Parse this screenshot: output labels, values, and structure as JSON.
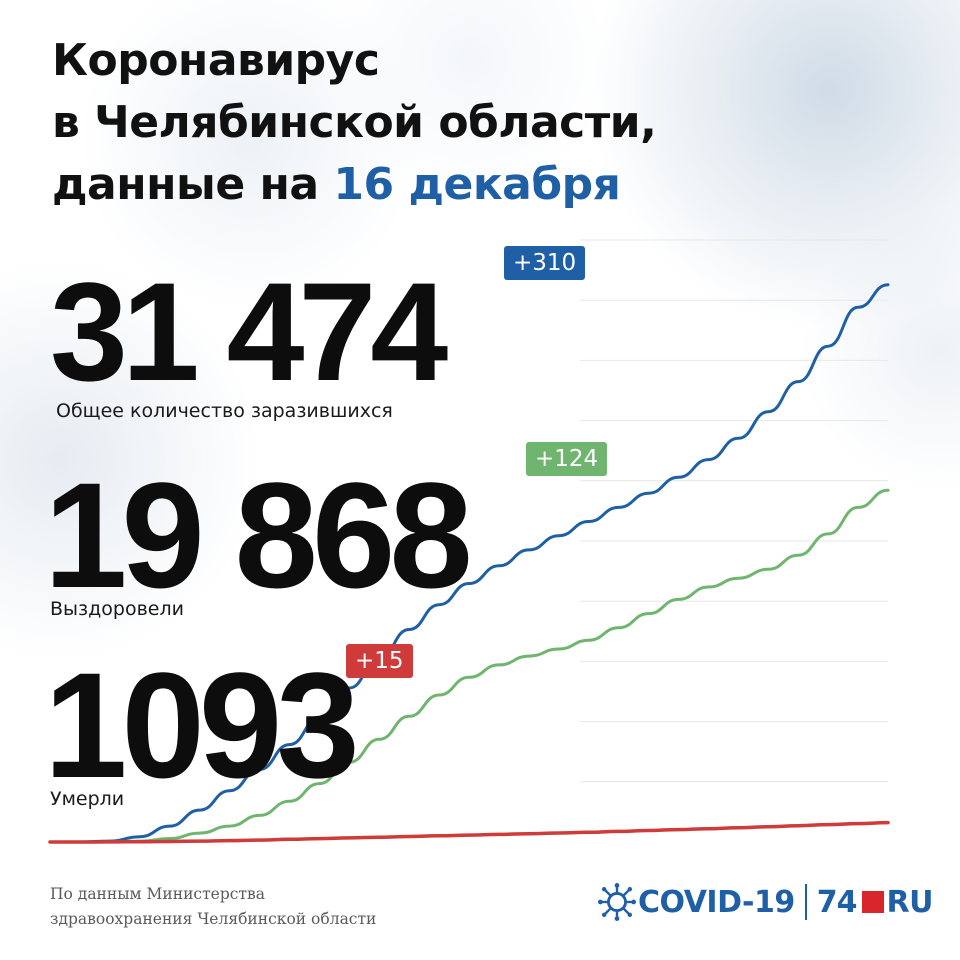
{
  "header": {
    "title_line1": "Коронавирус",
    "title_line2": "в Челябинской области,",
    "title_line3_prefix": "данные на ",
    "title_line3_date": "16 декабря"
  },
  "stats": {
    "infected": {
      "value": "31 474",
      "delta": "+310",
      "caption": "Общее количество заразившихся"
    },
    "recovered": {
      "value": "19 868",
      "delta": "+124",
      "caption": "Выздоровели"
    },
    "deaths": {
      "value": "1093",
      "delta": "+15",
      "caption": "Умерли"
    }
  },
  "colors": {
    "infected": "#1f5fa6",
    "recovered": "#6fb56f",
    "deaths": "#cf3a3a",
    "badge_infected": "#1f5fa6",
    "badge_recovered": "#6fb56f",
    "badge_deaths": "#cf3a3a",
    "accent": "#1f5fa6",
    "grid": "#e7e7e7"
  },
  "chart_data": {
    "type": "line",
    "grid": true,
    "ylim": [
      0,
      34000
    ],
    "x": [
      0,
      10,
      20,
      30,
      40,
      50,
      60,
      70,
      80,
      90,
      100,
      110,
      120,
      130,
      140,
      150,
      160,
      170,
      180,
      190,
      200,
      210,
      220,
      230,
      240,
      250,
      260,
      270,
      280
    ],
    "series": [
      {
        "key": "infected",
        "values": [
          0,
          0,
          50,
          300,
          900,
          1800,
          2900,
          4100,
          5500,
          7000,
          8700,
          10400,
          12000,
          13400,
          14600,
          15600,
          16500,
          17300,
          18100,
          18900,
          19700,
          20600,
          21600,
          22800,
          24300,
          26000,
          28000,
          30200,
          31474
        ]
      },
      {
        "key": "recovered",
        "values": [
          0,
          0,
          0,
          50,
          200,
          500,
          900,
          1500,
          2300,
          3300,
          4500,
          5800,
          7100,
          8300,
          9300,
          10000,
          10500,
          10900,
          11400,
          12100,
          12900,
          13700,
          14400,
          14900,
          15400,
          16200,
          17400,
          18900,
          19868
        ]
      },
      {
        "key": "deaths",
        "values": [
          0,
          0,
          5,
          15,
          30,
          50,
          80,
          110,
          150,
          190,
          230,
          270,
          310,
          350,
          390,
          430,
          470,
          510,
          550,
          600,
          650,
          700,
          750,
          800,
          860,
          920,
          980,
          1040,
          1093
        ]
      }
    ]
  },
  "footer": {
    "source_line1": "По данным Министерства",
    "source_line2": "здравоохранения Челябинской области",
    "logo_covid": "COVID-19",
    "logo_74": "74",
    "logo_ru": "RU"
  },
  "icons": {
    "virus": "virus-icon",
    "logo_square": "red-square-icon"
  }
}
